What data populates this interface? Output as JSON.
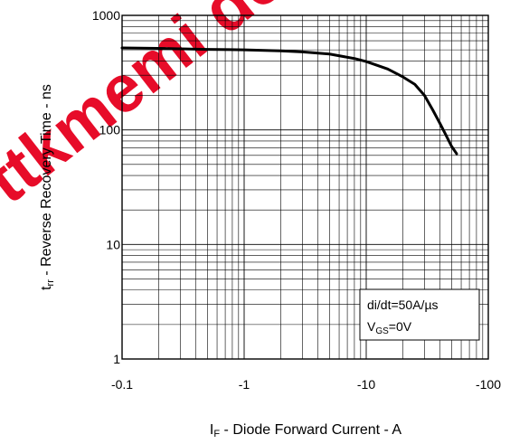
{
  "watermark": {
    "text": "ttkmemi designer",
    "color": "#e6001e"
  },
  "chart_data": {
    "type": "line",
    "title": "",
    "xlabel": {
      "prefix": "I",
      "sub": "F",
      "rest": " - Diode Forward Current - A"
    },
    "ylabel": {
      "prefix": "t",
      "sub": "rr",
      "rest": " - Reverse Recovery Time - ns"
    },
    "x_scale": "log-negative",
    "y_scale": "log",
    "xlim": [
      -0.1,
      -100
    ],
    "ylim": [
      1,
      1000
    ],
    "x_ticks": [
      {
        "value": -0.1,
        "label": "-0.1"
      },
      {
        "value": -1,
        "label": "-1"
      },
      {
        "value": -10,
        "label": "-10"
      },
      {
        "value": -100,
        "label": "-100"
      }
    ],
    "y_ticks": [
      {
        "value": 1,
        "label": "1"
      },
      {
        "value": 10,
        "label": "10"
      },
      {
        "value": 100,
        "label": "100"
      },
      {
        "value": 1000,
        "label": "1000"
      }
    ],
    "grid": true,
    "annotation": {
      "line1": "di/dt=50A/µs",
      "line2": {
        "prefix": "V",
        "sub": "GS",
        "rest": "=0V"
      }
    },
    "series": [
      {
        "color": "#000000",
        "x": [
          -0.1,
          -0.2,
          -0.5,
          -1,
          -2,
          -3,
          -5,
          -8,
          -10,
          -15,
          -20,
          -25,
          -30,
          -35,
          -40,
          -45,
          -50,
          -55
        ],
        "y": [
          520,
          515,
          505,
          500,
          490,
          480,
          460,
          420,
          395,
          340,
          290,
          250,
          200,
          150,
          115,
          90,
          72,
          62
        ]
      }
    ]
  }
}
